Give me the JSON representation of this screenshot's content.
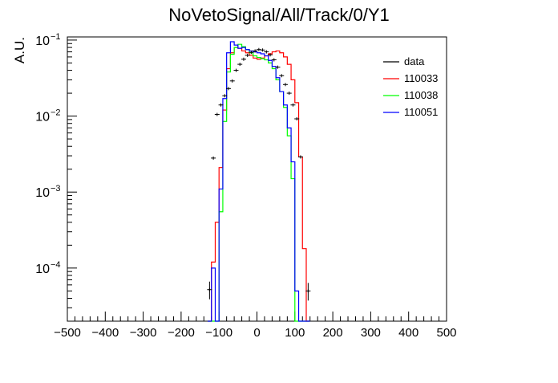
{
  "chart_data": {
    "type": "histogram",
    "title": "NoVetoSignal/All/Track/0/Y1",
    "ylabel": "A.U.",
    "xlabel": "",
    "xlim": [
      -500,
      500
    ],
    "ylim": [
      2e-05,
      0.11
    ],
    "y_scale": "log",
    "grid": false,
    "legend_position": "top-right",
    "bin_edges": [
      -130,
      -120,
      -110,
      -100,
      -90,
      -80,
      -70,
      -60,
      -50,
      -40,
      -30,
      -20,
      -10,
      0,
      10,
      20,
      30,
      40,
      50,
      60,
      70,
      80,
      90,
      100,
      110,
      120,
      130,
      140
    ],
    "x_ticks": [
      -500,
      -400,
      -300,
      -200,
      -100,
      0,
      100,
      200,
      300,
      400,
      500
    ],
    "x_tick_labels": [
      "−500",
      "−400",
      "−300",
      "−200",
      "−100",
      "0",
      "100",
      "200",
      "300",
      "400",
      "500"
    ],
    "y_ticks": [
      {
        "value": 0.0001,
        "base": "10",
        "exp": "−4"
      },
      {
        "value": 0.001,
        "base": "10",
        "exp": "−3"
      },
      {
        "value": 0.01,
        "base": "10",
        "exp": "−2"
      },
      {
        "value": 0.1,
        "base": "10",
        "exp": "−1"
      }
    ],
    "series": [
      {
        "name": "data",
        "color": "#000000",
        "style": "points",
        "points": [
          {
            "x": -125,
            "y": 5.2e-05
          },
          {
            "x": -115,
            "y": 0.0028
          },
          {
            "x": -105,
            "y": 0.0105
          },
          {
            "x": -95,
            "y": 0.014
          },
          {
            "x": -85,
            "y": 0.0185
          },
          {
            "x": -75,
            "y": 0.023
          },
          {
            "x": -65,
            "y": 0.029
          },
          {
            "x": -55,
            "y": 0.04
          },
          {
            "x": -45,
            "y": 0.048
          },
          {
            "x": -35,
            "y": 0.056
          },
          {
            "x": -25,
            "y": 0.063
          },
          {
            "x": -15,
            "y": 0.069
          },
          {
            "x": -5,
            "y": 0.072
          },
          {
            "x": 5,
            "y": 0.075
          },
          {
            "x": 15,
            "y": 0.074
          },
          {
            "x": 25,
            "y": 0.07
          },
          {
            "x": 35,
            "y": 0.064
          },
          {
            "x": 45,
            "y": 0.055
          },
          {
            "x": 55,
            "y": 0.044
          },
          {
            "x": 65,
            "y": 0.034
          },
          {
            "x": 75,
            "y": 0.026
          },
          {
            "x": 85,
            "y": 0.02
          },
          {
            "x": 95,
            "y": 0.014
          },
          {
            "x": 105,
            "y": 0.0092
          },
          {
            "x": 115,
            "y": 0.0029
          },
          {
            "x": 135,
            "y": 5e-05
          }
        ]
      },
      {
        "name": "110033",
        "color": "#ff0000",
        "style": "step",
        "values": [
          2e-05,
          0.00012,
          0.0004,
          0.0021,
          0.012,
          0.042,
          0.068,
          0.08,
          0.078,
          0.072,
          0.068,
          0.063,
          0.058,
          0.056,
          0.058,
          0.062,
          0.066,
          0.07,
          0.072,
          0.068,
          0.06,
          0.048,
          0.03,
          0.015,
          0.0029,
          0.00018,
          2e-05
        ]
      },
      {
        "name": "110038",
        "color": "#00ff00",
        "style": "step",
        "values": [
          2e-05,
          2e-05,
          2e-05,
          0.00055,
          0.0085,
          0.038,
          0.065,
          0.08,
          0.088,
          0.082,
          0.075,
          0.068,
          0.062,
          0.059,
          0.057,
          0.055,
          0.05,
          0.042,
          0.03,
          0.021,
          0.013,
          0.0055,
          0.0015,
          2e-05,
          2e-05,
          2e-05,
          2e-05
        ]
      },
      {
        "name": "110051",
        "color": "#0000ff",
        "style": "step",
        "values": [
          2e-05,
          0.0001,
          2e-05,
          0.0011,
          0.017,
          0.068,
          0.095,
          0.086,
          0.078,
          0.08,
          0.075,
          0.072,
          0.07,
          0.068,
          0.066,
          0.062,
          0.054,
          0.045,
          0.032,
          0.021,
          0.014,
          0.007,
          0.0025,
          5e-05,
          2e-05,
          2e-05,
          2e-05
        ]
      }
    ]
  }
}
